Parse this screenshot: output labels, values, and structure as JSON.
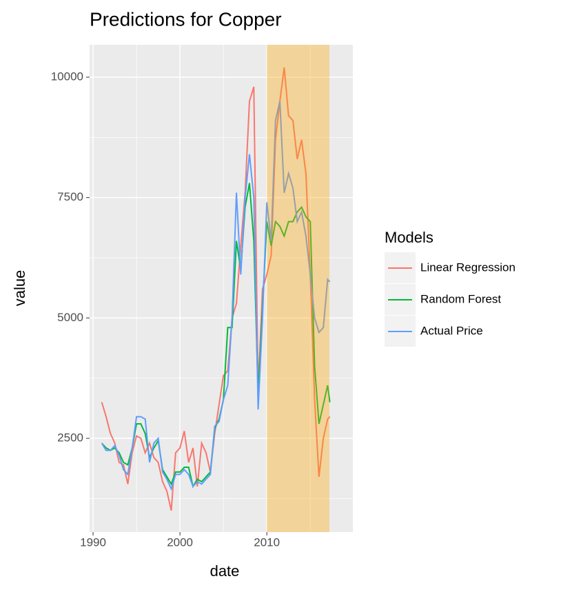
{
  "chart_data": {
    "type": "line",
    "title": "Predictions for Copper",
    "x_label": "date",
    "y_label": "value",
    "legend_title": "Models",
    "legend": "right",
    "grid": true,
    "xlim": [
      1989.6,
      2019.9
    ],
    "ylim": [
      554,
      10672
    ],
    "xticks": [
      1990,
      2000,
      2010
    ],
    "yticks": [
      2500,
      5000,
      7500,
      10000
    ],
    "x_minor_ticks": [
      1995,
      2005,
      2015
    ],
    "y_minor_ticks": [
      1250,
      3750,
      6250,
      8750
    ],
    "highlight": {
      "xmin": 2010,
      "xmax": 2017.2,
      "color": "orange"
    },
    "x": [
      1991,
      1991.5,
      1992,
      1992.5,
      1993,
      1993.5,
      1994,
      1994.5,
      1995,
      1995.5,
      1996,
      1996.5,
      1997,
      1997.5,
      1998,
      1998.5,
      1999,
      1999.5,
      2000,
      2000.5,
      2001,
      2001.5,
      2002,
      2002.5,
      2003,
      2003.5,
      2004,
      2004.5,
      2005,
      2005.5,
      2006,
      2006.5,
      2007,
      2007.5,
      2008,
      2008.5,
      2009,
      2009.5,
      2010,
      2010.5,
      2011,
      2011.5,
      2012,
      2012.5,
      2013,
      2013.5,
      2014,
      2014.5,
      2015,
      2015.5,
      2016,
      2016.5,
      2017,
      2017.25
    ],
    "series": [
      {
        "name": "Linear Regression",
        "color": "#F8766D",
        "values": [
          3250,
          2950,
          2600,
          2400,
          2000,
          1950,
          1550,
          2200,
          2550,
          2500,
          2200,
          2400,
          2100,
          2000,
          1600,
          1400,
          1000,
          2200,
          2300,
          2650,
          2000,
          2300,
          1500,
          2400,
          2200,
          1800,
          2600,
          3200,
          3800,
          3900,
          5000,
          5300,
          6500,
          7600,
          9500,
          9800,
          3500,
          5600,
          5900,
          6300,
          8700,
          9500,
          10200,
          9200,
          9100,
          8300,
          8700,
          8000,
          5900,
          3300,
          1700,
          2500,
          2900,
          2950
        ]
      },
      {
        "name": "Random Forest",
        "color": "#00BA38",
        "values": [
          2400,
          2300,
          2250,
          2300,
          2200,
          2000,
          1950,
          2300,
          2800,
          2800,
          2600,
          2100,
          2300,
          2450,
          1850,
          1700,
          1550,
          1800,
          1800,
          1900,
          1900,
          1500,
          1650,
          1600,
          1700,
          1800,
          2700,
          2900,
          3300,
          4800,
          4800,
          6600,
          6000,
          7300,
          7800,
          6600,
          3400,
          5200,
          7000,
          6500,
          7000,
          6900,
          6700,
          7000,
          7000,
          7200,
          7300,
          7100,
          7000,
          4000,
          2800,
          3200,
          3600,
          3250
        ]
      },
      {
        "name": "Actual Price",
        "color": "#619CFF",
        "values": [
          2400,
          2250,
          2250,
          2350,
          2150,
          1850,
          1750,
          2300,
          2950,
          2950,
          2900,
          2000,
          2400,
          2500,
          1800,
          1650,
          1450,
          1750,
          1750,
          1850,
          1750,
          1500,
          1600,
          1550,
          1650,
          1750,
          2750,
          2850,
          3300,
          3600,
          5000,
          7600,
          5900,
          7500,
          8400,
          7500,
          3100,
          5000,
          7400,
          6600,
          9100,
          9500,
          7600,
          8000,
          7700,
          7000,
          7200,
          6700,
          5900,
          5000,
          4700,
          4800,
          5800,
          5750
        ]
      }
    ]
  }
}
